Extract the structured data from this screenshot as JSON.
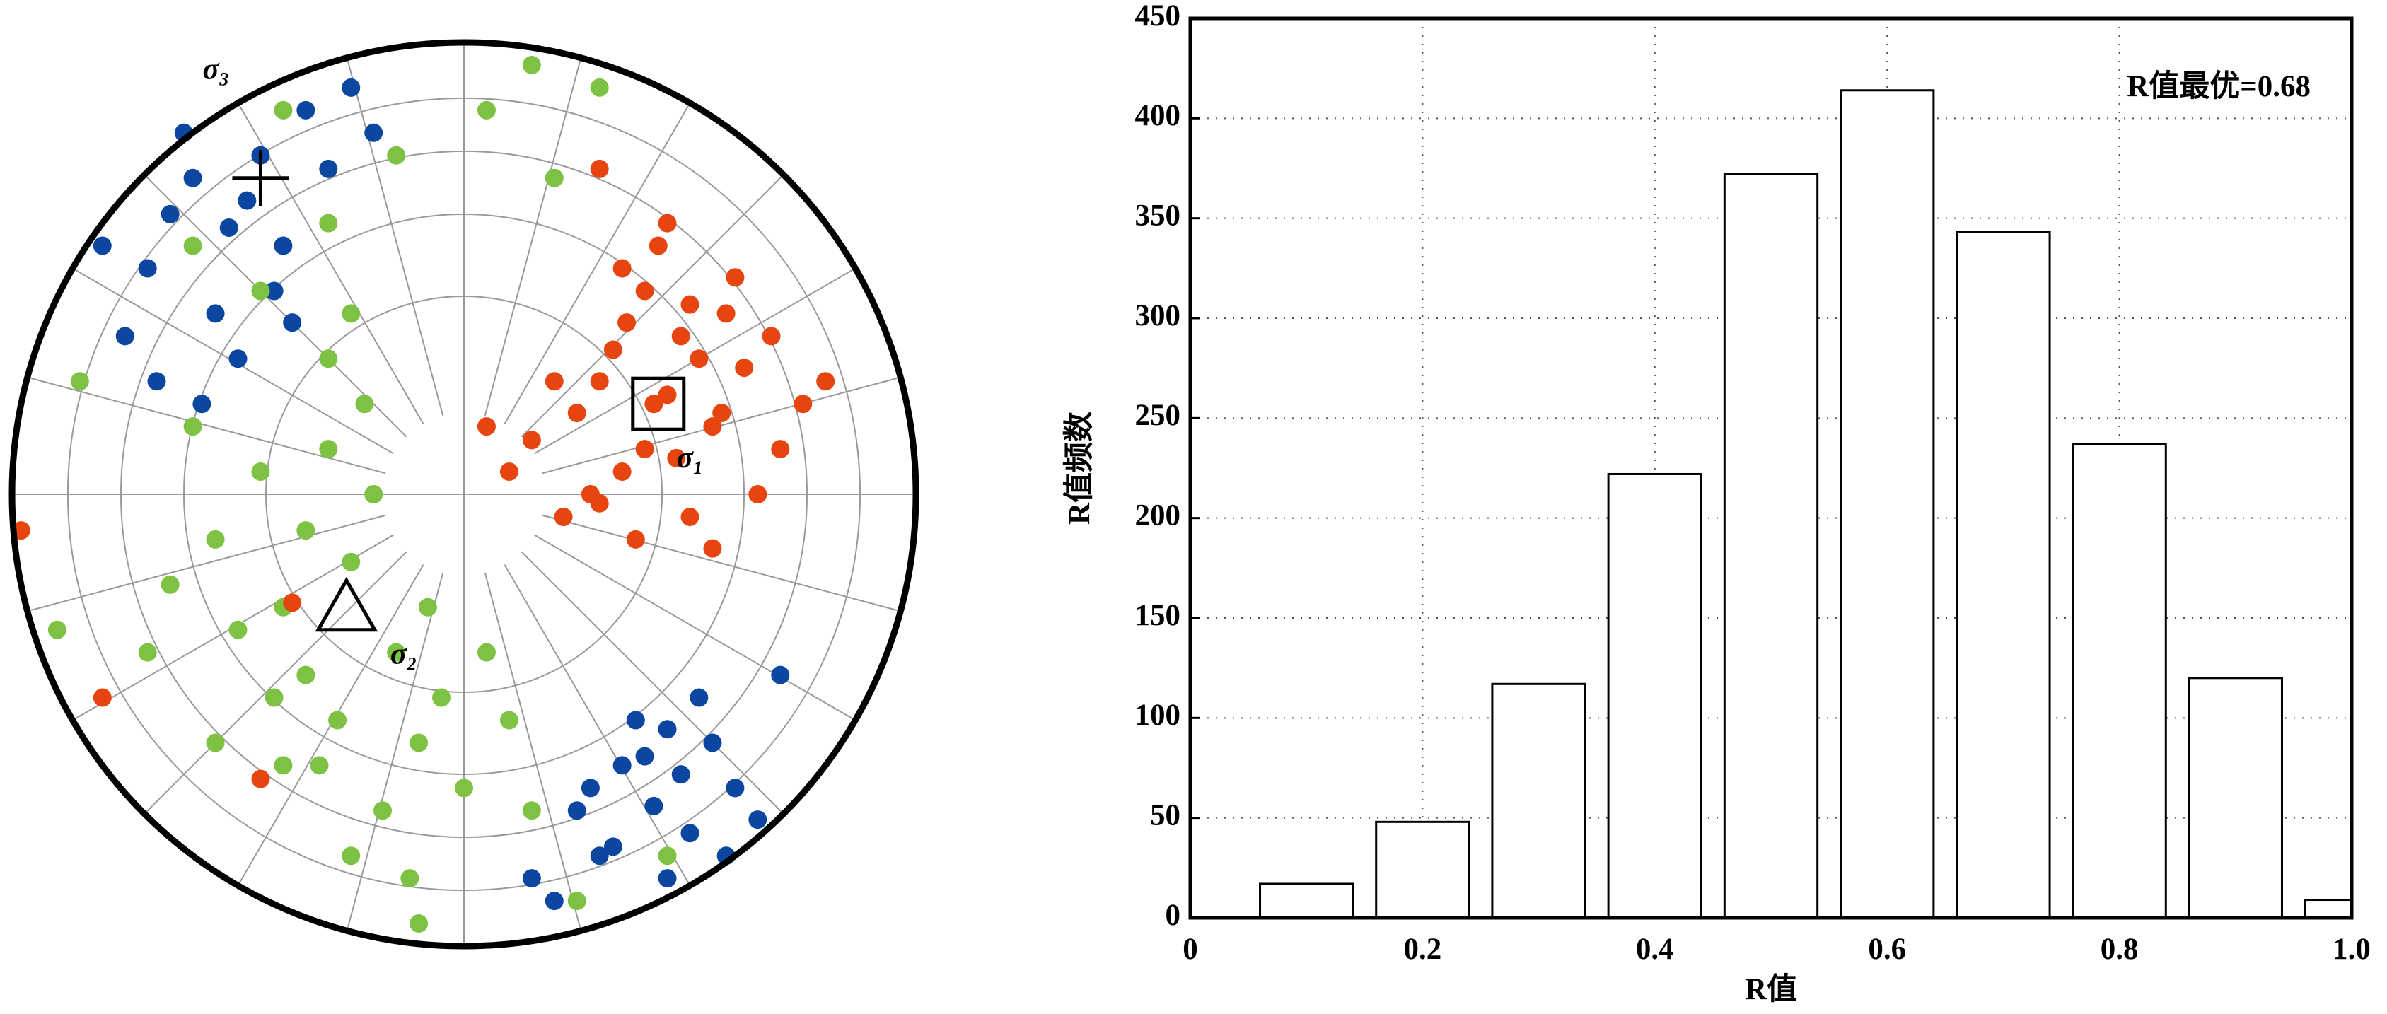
{
  "chart_data": [
    {
      "type": "stereonet",
      "xlim": [
        -1,
        1
      ],
      "ylim": [
        -1,
        1
      ],
      "series": [
        {
          "color": "#0b46a0",
          "x": [
            -0.52,
            -0.6,
            -0.45,
            -0.7,
            -0.35,
            -0.55,
            -0.65,
            -0.4,
            -0.3,
            -0.75,
            -0.5,
            -0.62,
            -0.42,
            -0.25,
            -0.8,
            -0.58,
            -0.2,
            -0.48,
            -0.68,
            -0.38,
            0.42,
            0.35,
            0.5,
            0.3,
            0.55,
            0.45,
            0.25,
            0.6,
            0.38,
            0.48,
            0.2,
            0.65,
            0.33,
            0.52,
            0.15,
            0.4,
            0.58,
            0.28,
            0.7,
            0.45
          ],
          "values": [
            0.59,
            0.7,
            0.75,
            0.5,
            0.85,
            0.4,
            0.62,
            0.55,
            0.72,
            0.35,
            0.3,
            0.8,
            0.45,
            0.9,
            0.55,
            0.2,
            0.8,
            0.65,
            0.25,
            0.38,
            -0.69,
            -0.6,
            -0.75,
            -0.8,
            -0.55,
            -0.85,
            -0.7,
            -0.65,
            -0.5,
            -0.62,
            -0.9,
            -0.72,
            -0.78,
            -0.45,
            -0.85,
            -0.58,
            -0.8,
            -0.65,
            -0.4,
            -0.52
          ]
        },
        {
          "color": "#7dc242",
          "x": [
            -0.35,
            -0.45,
            -0.25,
            -0.55,
            -0.3,
            -0.4,
            -0.2,
            -0.5,
            -0.6,
            -0.15,
            -0.35,
            -0.28,
            -0.42,
            -0.1,
            -0.65,
            -0.22,
            -0.05,
            -0.32,
            0.0,
            -0.18,
            0.05,
            -0.25,
            -0.4,
            -0.12,
            0.1,
            -0.55,
            -0.3,
            0.15,
            -0.7,
            -0.08,
            -0.45,
            -0.3,
            -0.15,
            -0.6,
            0.05,
            -0.85,
            -0.4,
            0.2,
            0.3,
            0.15,
            -0.25,
            0.25,
            0.45,
            -0.9,
            -0.1
          ],
          "values": [
            -0.08,
            0.05,
            -0.15,
            -0.1,
            0.1,
            -0.25,
            0.0,
            -0.3,
            0.15,
            -0.35,
            -0.4,
            -0.5,
            -0.45,
            -0.55,
            -0.2,
            0.2,
            -0.45,
            -0.6,
            -0.65,
            -0.7,
            -0.35,
            -0.8,
            -0.6,
            -0.85,
            -0.5,
            -0.55,
            0.3,
            -0.7,
            -0.35,
            -0.25,
            0.45,
            0.6,
            0.75,
            0.55,
            0.85,
            0.25,
            0.85,
            0.7,
            0.9,
            0.95,
            0.4,
            -0.9,
            -0.8,
            -0.3,
            -0.95
          ]
        },
        {
          "color": "#e8440f",
          "x": [
            0.42,
            0.3,
            0.55,
            0.48,
            0.35,
            0.62,
            0.25,
            0.4,
            0.5,
            0.7,
            0.15,
            0.33,
            0.45,
            0.58,
            0.28,
            0.38,
            0.52,
            0.65,
            0.2,
            0.43,
            0.36,
            0.6,
            0.47,
            0.3,
            0.55,
            0.75,
            0.1,
            0.4,
            0.5,
            0.68,
            0.22,
            0.8,
            0.05,
            0.45,
            0.35,
            0.57,
            -0.98,
            -0.8,
            -0.45,
            -0.38,
            0.3
          ],
          "values": [
            0.2,
            0.25,
            0.15,
            0.35,
            0.05,
            0.28,
            0.18,
            0.45,
            -0.05,
            0.1,
            0.12,
            0.32,
            0.22,
            0.4,
            0.0,
            -0.1,
            0.3,
            0.0,
            0.25,
            0.55,
            0.38,
            0.48,
            0.08,
            -0.02,
            -0.12,
            0.2,
            0.05,
            0.1,
            0.42,
            0.35,
            -0.05,
            0.25,
            0.15,
            0.6,
            0.5,
            0.18,
            -0.08,
            -0.45,
            -0.63,
            -0.24,
            0.72
          ]
        }
      ],
      "principal_axes": [
        {
          "label": "σ₁",
          "marker": "square",
          "x": 0.43,
          "y": 0.2
        },
        {
          "label": "σ₂",
          "marker": "triangle",
          "x": -0.26,
          "y": -0.25
        },
        {
          "label": "σ₃",
          "marker": "cross",
          "x": -0.45,
          "y": 0.7
        }
      ]
    },
    {
      "type": "bar",
      "xlabel": "R值",
      "ylabel": "R值频数",
      "annotation": "R值最优=0.68",
      "x": [
        0.1,
        0.2,
        0.3,
        0.4,
        0.5,
        0.6,
        0.7,
        0.8,
        0.9,
        1.0
      ],
      "values": [
        17,
        48,
        117,
        222,
        372,
        414,
        343,
        237,
        120,
        9
      ],
      "color": "#ffffff",
      "xlim": [
        0,
        1
      ],
      "ylim": [
        0,
        450
      ],
      "xticks": [
        0,
        0.2,
        0.4,
        0.6,
        0.8,
        {
          "value": 1,
          "label": "1.0"
        }
      ],
      "yticks": [
        0,
        50,
        100,
        150,
        200,
        250,
        300,
        350,
        400,
        450
      ],
      "grid": true
    }
  ]
}
